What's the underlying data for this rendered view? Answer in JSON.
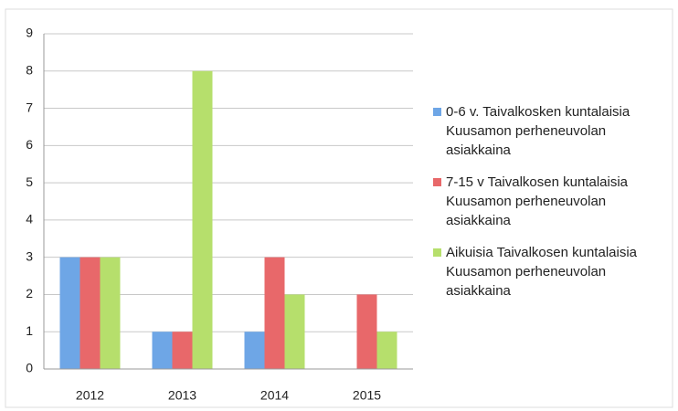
{
  "chart_data": {
    "type": "bar",
    "categories": [
      "2012",
      "2013",
      "2014",
      "2015"
    ],
    "series": [
      {
        "name": "0-6 v. Taivalkosken kuntalaisia Kuusamon perheneuvolan asiakkaina",
        "color": "#6ea6e6",
        "values": [
          3,
          1,
          1,
          0
        ]
      },
      {
        "name": "7-15 v Taivalkosen kuntalaisia Kuusamon perheneuvolan asiakkaina",
        "color": "#e8686a",
        "values": [
          3,
          1,
          3,
          2
        ]
      },
      {
        "name": "Aikuisia Taivalkosen kuntalaisia Kuusamon perheneuvolan asiakkaina",
        "color": "#b6df6c",
        "values": [
          3,
          8,
          2,
          1
        ]
      }
    ],
    "ylim": [
      0,
      9
    ],
    "yticks": [
      0,
      1,
      2,
      3,
      4,
      5,
      6,
      7,
      8,
      9
    ],
    "grid": true,
    "legend": "right"
  }
}
